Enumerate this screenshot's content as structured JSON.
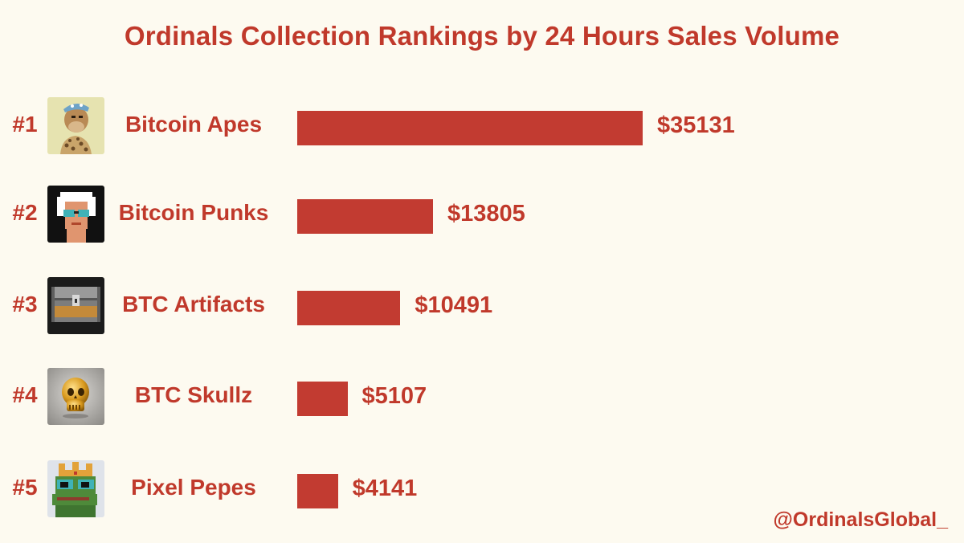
{
  "chart_data": {
    "type": "bar",
    "orientation": "horizontal",
    "title": "Ordinals Collection Rankings by 24 Hours Sales Volume",
    "value_prefix": "$",
    "bar_color": "#c23b31",
    "text_color": "#c0392b",
    "background": "#fdfaf0",
    "categories": [
      "Bitcoin Apes",
      "Bitcoin Punks",
      "BTC Artifacts",
      "BTC Skullz",
      "Pixel Pepes"
    ],
    "ranks": [
      "#1",
      "#2",
      "#3",
      "#4",
      "#5"
    ],
    "values": [
      35131,
      13805,
      10491,
      5107,
      4141
    ],
    "value_labels": [
      "$35131",
      "$13805",
      "$10491",
      "$5107",
      "$4141"
    ],
    "icons": [
      "ape-nft-icon",
      "punk-nft-icon",
      "treasure-chest-icon",
      "gold-skull-icon",
      "pepe-crown-icon"
    ],
    "grid": false,
    "legend": "none"
  },
  "footer": {
    "handle": "@OrdinalsGlobal_"
  }
}
